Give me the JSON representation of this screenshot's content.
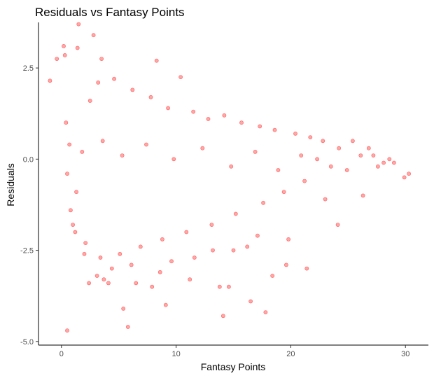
{
  "chart_data": {
    "type": "scatter",
    "title": "Residuals vs Fantasy Points",
    "xlabel": "Fantasy Points",
    "ylabel": "Residuals",
    "xlim": [
      -2,
      32
    ],
    "ylim": [
      -5.1,
      3.75
    ],
    "x_ticks": [
      0,
      10,
      20,
      30
    ],
    "x_tick_labels": [
      "0",
      "10",
      "20",
      "30"
    ],
    "y_ticks": [
      -5.0,
      -2.5,
      0.0,
      2.5
    ],
    "y_tick_labels": [
      "-5.0",
      "-2.5",
      "0.0",
      "2.5"
    ],
    "grid": false,
    "legend": "none",
    "point_color": "#ff0000",
    "points": [
      [
        0.5,
        -4.7
      ],
      [
        5.8,
        -4.6
      ],
      [
        14.1,
        -4.3
      ],
      [
        17.8,
        -4.2
      ],
      [
        5.4,
        -4.1
      ],
      [
        9.1,
        -4.0
      ],
      [
        16.5,
        -3.9
      ],
      [
        13.8,
        -3.5
      ],
      [
        7.9,
        -3.5
      ],
      [
        14.6,
        -3.5
      ],
      [
        18.4,
        -3.2
      ],
      [
        21.4,
        -3.0
      ],
      [
        19.6,
        -2.9
      ],
      [
        11.2,
        -3.3
      ],
      [
        6.5,
        -3.4
      ],
      [
        4.1,
        -3.4
      ],
      [
        3.7,
        -3.3
      ],
      [
        2.4,
        -3.4
      ],
      [
        3.1,
        -3.2
      ],
      [
        8.6,
        -3.1
      ],
      [
        1.5,
        3.7
      ],
      [
        2.8,
        3.4
      ],
      [
        0.2,
        3.1
      ],
      [
        1.4,
        3.05
      ],
      [
        -0.4,
        2.75
      ],
      [
        0.3,
        2.85
      ],
      [
        3.5,
        2.75
      ],
      [
        8.3,
        2.7
      ],
      [
        -1.0,
        2.15
      ],
      [
        10.4,
        2.25
      ],
      [
        25.4,
        0.5
      ],
      [
        26.8,
        0.3
      ],
      [
        27.2,
        0.1
      ],
      [
        28.1,
        -0.1
      ],
      [
        29.0,
        -0.1
      ],
      [
        30.3,
        -0.4
      ],
      [
        29.9,
        -0.5
      ],
      [
        26.3,
        -1.0
      ],
      [
        23.0,
        -1.1
      ],
      [
        24.1,
        -1.8
      ],
      [
        16.2,
        -2.4
      ],
      [
        15.0,
        -2.5
      ],
      [
        17.1,
        -2.1
      ],
      [
        19.8,
        -2.2
      ],
      [
        11.6,
        -2.7
      ],
      [
        13.2,
        -2.5
      ],
      [
        6.1,
        -2.9
      ],
      [
        4.4,
        -3.0
      ],
      [
        9.6,
        -2.8
      ],
      [
        2.0,
        -2.6
      ],
      [
        1.0,
        -1.8
      ],
      [
        0.8,
        -1.4
      ],
      [
        1.3,
        -0.9
      ],
      [
        0.5,
        -0.4
      ],
      [
        0.7,
        0.4
      ],
      [
        2.5,
        1.6
      ],
      [
        3.2,
        2.1
      ],
      [
        4.6,
        2.2
      ],
      [
        6.2,
        1.9
      ],
      [
        7.8,
        1.7
      ],
      [
        9.3,
        1.4
      ],
      [
        11.5,
        1.3
      ],
      [
        12.8,
        1.1
      ],
      [
        14.2,
        1.2
      ],
      [
        15.7,
        1.0
      ],
      [
        17.3,
        0.9
      ],
      [
        18.6,
        0.8
      ],
      [
        20.4,
        0.7
      ],
      [
        21.7,
        0.6
      ],
      [
        22.8,
        0.5
      ],
      [
        24.2,
        0.3
      ],
      [
        23.5,
        -0.2
      ],
      [
        21.2,
        -0.6
      ],
      [
        19.4,
        -0.9
      ],
      [
        17.6,
        -1.2
      ],
      [
        15.2,
        -1.5
      ],
      [
        13.1,
        -1.8
      ],
      [
        10.9,
        -2.0
      ],
      [
        8.8,
        -2.2
      ],
      [
        6.9,
        -2.4
      ],
      [
        5.1,
        -2.6
      ],
      [
        3.4,
        -2.7
      ],
      [
        2.1,
        -2.3
      ],
      [
        1.2,
        -2.0
      ],
      [
        0.4,
        1.0
      ],
      [
        1.8,
        0.2
      ],
      [
        3.6,
        0.5
      ],
      [
        5.3,
        0.1
      ],
      [
        7.4,
        0.4
      ],
      [
        9.8,
        0.0
      ],
      [
        12.3,
        0.3
      ],
      [
        14.8,
        -0.2
      ],
      [
        16.9,
        0.2
      ],
      [
        18.9,
        -0.3
      ],
      [
        20.9,
        0.1
      ],
      [
        22.3,
        0.0
      ],
      [
        24.9,
        -0.3
      ],
      [
        26.1,
        0.1
      ],
      [
        27.6,
        -0.2
      ],
      [
        28.6,
        0.0
      ]
    ]
  }
}
